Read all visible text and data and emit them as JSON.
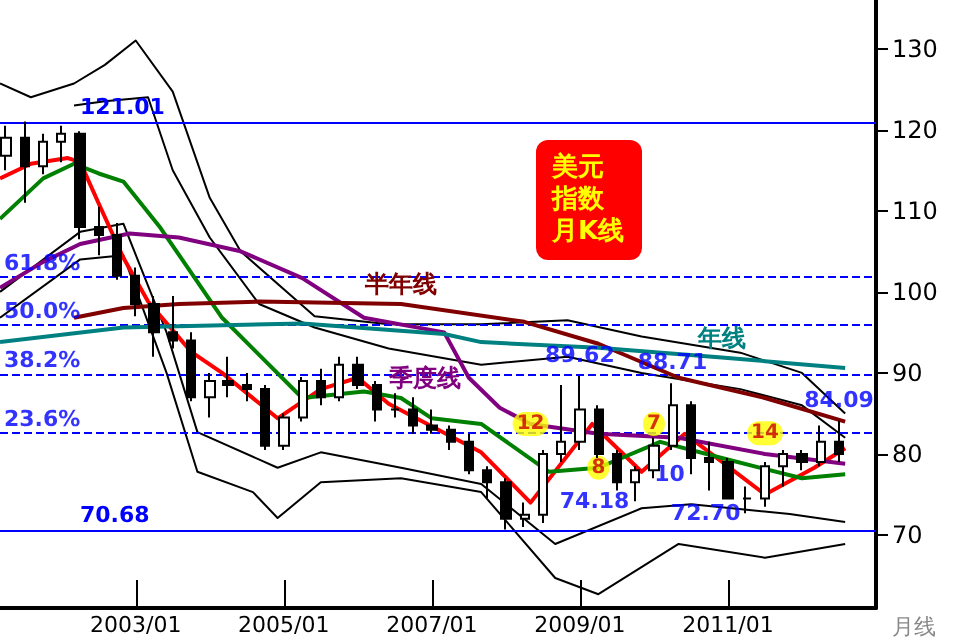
{
  "chart_data": {
    "type": "candlestick",
    "title": "美元指数月K线",
    "xlabel": "月线",
    "x": [
      "2001-04",
      "2001-07",
      "2001-10",
      "2002-01",
      "2002-04",
      "2002-07",
      "2002-10",
      "2003-01",
      "2003-04",
      "2003-07",
      "2003-10",
      "2004-01",
      "2004-04",
      "2004-07",
      "2004-10",
      "2005-01",
      "2005-04",
      "2005-07",
      "2005-10",
      "2006-01",
      "2006-04",
      "2006-07",
      "2006-10",
      "2007-01",
      "2007-04",
      "2007-07",
      "2007-10",
      "2008-01",
      "2008-04",
      "2008-07",
      "2008-10",
      "2009-01",
      "2009-04",
      "2009-07",
      "2009-10",
      "2010-01",
      "2010-04",
      "2010-07",
      "2010-10",
      "2011-01",
      "2011-04",
      "2011-07",
      "2011-10",
      "2012-01",
      "2012-04",
      "2012-07"
    ],
    "ohlc": [
      [
        116.8,
        120.5,
        115.0,
        119.0
      ],
      [
        119.0,
        121.01,
        111.0,
        115.5
      ],
      [
        115.5,
        119.5,
        114.5,
        118.5
      ],
      [
        118.5,
        120.5,
        116.0,
        119.5
      ],
      [
        119.5,
        119.8,
        106.5,
        108.0
      ],
      [
        108.0,
        110.5,
        104.5,
        107.0
      ],
      [
        107.0,
        108.5,
        101.5,
        102.0
      ],
      [
        102.0,
        103.0,
        97.0,
        98.5
      ],
      [
        98.5,
        99.5,
        92.0,
        95.0
      ],
      [
        95.0,
        99.5,
        93.0,
        94.0
      ],
      [
        94.0,
        95.0,
        86.5,
        87.0
      ],
      [
        87.0,
        90.0,
        84.5,
        89.0
      ],
      [
        89.0,
        92.0,
        87.0,
        88.5
      ],
      [
        88.5,
        90.0,
        86.5,
        88.0
      ],
      [
        88.0,
        88.5,
        80.5,
        81.0
      ],
      [
        81.0,
        85.0,
        80.5,
        84.5
      ],
      [
        84.5,
        89.5,
        84.0,
        89.0
      ],
      [
        89.0,
        90.5,
        86.0,
        87.0
      ],
      [
        87.0,
        92.0,
        86.5,
        91.0
      ],
      [
        91.0,
        92.0,
        88.0,
        88.5
      ],
      [
        88.5,
        89.0,
        84.0,
        85.5
      ],
      [
        85.5,
        87.5,
        84.5,
        85.5
      ],
      [
        85.5,
        87.0,
        82.5,
        83.5
      ],
      [
        83.5,
        85.5,
        82.5,
        83.0
      ],
      [
        83.0,
        83.5,
        80.5,
        81.5
      ],
      [
        81.5,
        82.5,
        77.5,
        78.0
      ],
      [
        78.0,
        78.5,
        74.5,
        76.5
      ],
      [
        76.5,
        77.0,
        70.68,
        72.0
      ],
      [
        72.0,
        74.0,
        71.0,
        72.5
      ],
      [
        72.5,
        80.5,
        71.5,
        80.0
      ],
      [
        80.0,
        88.5,
        79.0,
        81.5
      ],
      [
        81.5,
        89.62,
        80.5,
        85.5
      ],
      [
        85.5,
        86.0,
        79.5,
        80.0
      ],
      [
        80.0,
        80.5,
        75.5,
        76.5
      ],
      [
        76.5,
        78.5,
        74.18,
        78.0
      ],
      [
        78.0,
        82.0,
        77.0,
        81.0
      ],
      [
        81.0,
        88.71,
        80.5,
        86.0
      ],
      [
        86.0,
        86.5,
        77.5,
        79.5
      ],
      [
        79.5,
        81.5,
        75.5,
        79.0
      ],
      [
        79.0,
        79.5,
        74.5,
        74.5
      ],
      [
        74.5,
        76.0,
        72.7,
        74.5
      ],
      [
        74.5,
        79.0,
        73.5,
        78.5
      ],
      [
        78.5,
        80.5,
        76.0,
        80.0
      ],
      [
        80.0,
        80.5,
        78.0,
        79.0
      ],
      [
        79.0,
        83.5,
        78.5,
        81.5
      ],
      [
        81.5,
        84.09,
        79.0,
        80.0
      ]
    ],
    "color": "#000000",
    "series": [
      {
        "type": "line",
        "color": "#ff0000",
        "x": [
          "2001-03",
          "2001-08",
          "2002-02",
          "2002-04",
          "2002-07",
          "2002-11",
          "2003-03",
          "2003-10",
          "2004-03",
          "2004-12",
          "2005-07",
          "2006-01",
          "2006-06",
          "2007-09",
          "2008-05",
          "2009-03",
          "2009-11",
          "2010-06",
          "2011-07",
          "2012-03",
          "2012-08"
        ],
        "values": [
          114,
          115.8,
          116.5,
          116,
          110.9,
          104.2,
          98.8,
          92.6,
          90,
          84.4,
          88,
          89.4,
          86.2,
          80.2,
          74,
          83.7,
          77.8,
          82.5,
          75,
          78.3,
          80.7
        ]
      },
      {
        "type": "line",
        "color": "#008000",
        "x": [
          "2001-03",
          "2001-10",
          "2002-03",
          "2002-07",
          "2002-11",
          "2003-05",
          "2004-03",
          "2005-04",
          "2006-02",
          "2006-08",
          "2007-01",
          "2007-09",
          "2008-08",
          "2009-04",
          "2010-02",
          "2010-12",
          "2012-01",
          "2012-08"
        ],
        "values": [
          109,
          114,
          115.8,
          114.6,
          113.6,
          107.9,
          96.8,
          86.9,
          87.7,
          86.9,
          84.4,
          83.7,
          77.8,
          78.3,
          81.5,
          79.5,
          77,
          77.5
        ]
      },
      {
        "type": "line",
        "name": "季度线",
        "color": "#800080",
        "x": [
          "2001-03",
          "2001-10",
          "2002-04",
          "2002-12",
          "2003-08",
          "2004-06",
          "2005-04",
          "2006-02",
          "2007-03",
          "2007-07",
          "2007-12",
          "2008-05",
          "2009-04",
          "2010-05",
          "2011-07",
          "2012-08"
        ],
        "values": [
          100.5,
          103.7,
          105.9,
          107.2,
          106.7,
          105,
          101.7,
          96.8,
          95,
          89.4,
          85.7,
          83.7,
          82.5,
          82,
          80,
          78.8
        ]
      },
      {
        "type": "line",
        "name": "半年线",
        "color": "#800000",
        "x": [
          "2002-03",
          "2002-11",
          "2003-08",
          "2004-09",
          "2006-08",
          "2008-04",
          "2009-04",
          "2010-05",
          "2011-07",
          "2012-08"
        ],
        "values": [
          96.8,
          98,
          98.5,
          98.8,
          98.5,
          96.3,
          93.6,
          89.4,
          86.9,
          84
        ]
      },
      {
        "type": "line",
        "name": "年线",
        "color": "#008080",
        "x": [
          "2001-03",
          "2002-11",
          "2005-04",
          "2007-03",
          "2007-09",
          "2009-04",
          "2010-12",
          "2012-08"
        ],
        "values": [
          93.8,
          95.6,
          96.1,
          94.8,
          93.8,
          93.1,
          91.9,
          90.6
        ]
      },
      {
        "type": "line",
        "color": "#000000",
        "x": [
          "2001-03",
          "2001-08",
          "2002-03",
          "2002-08",
          "2003-01",
          "2003-07",
          "2004-01",
          "2004-06",
          "2005-06",
          "2006-06",
          "2007-09",
          "2008-11",
          "2009-11",
          "2011-03",
          "2012-01",
          "2012-08"
        ],
        "values": [
          125.7,
          124,
          125.7,
          128,
          131,
          124.7,
          111.6,
          105,
          97,
          96,
          96,
          96.5,
          94.5,
          92.5,
          90,
          85
        ]
      },
      {
        "type": "line",
        "color": "#000000",
        "x": [
          "2002-03",
          "2002-08",
          "2003-03",
          "2003-07",
          "2004-01",
          "2004-09",
          "2005-06",
          "2006-06",
          "2007-09",
          "2008-11",
          "2009-11",
          "2011-03",
          "2012-01",
          "2012-08"
        ],
        "values": [
          123,
          123.5,
          124,
          115,
          106.7,
          98.5,
          95.6,
          93,
          91,
          92,
          90,
          88,
          86,
          82
        ]
      },
      {
        "type": "line",
        "color": "#000000",
        "x": [
          "2001-03",
          "2002-04",
          "2002-11",
          "2003-06",
          "2003-11",
          "2004-12",
          "2005-07",
          "2006-08",
          "2007-09",
          "2008-09",
          "2009-11",
          "2010-07",
          "2011-11",
          "2012-08"
        ],
        "values": [
          100,
          107.4,
          108.4,
          95,
          82.7,
          78.3,
          80.2,
          78.3,
          76.3,
          68.9,
          73.3,
          73.8,
          72.6,
          71.6
        ]
      },
      {
        "type": "line",
        "color": "#000000",
        "x": [
          "2001-03",
          "2002-04",
          "2002-11",
          "2003-06",
          "2003-11",
          "2004-08",
          "2004-12",
          "2005-07",
          "2006-08",
          "2007-09",
          "2008-09",
          "2009-04",
          "2010-05",
          "2011-07",
          "2012-08"
        ],
        "values": [
          96.8,
          104,
          104.5,
          90,
          77.8,
          75.3,
          72.1,
          76.5,
          77,
          75.3,
          64.7,
          62.7,
          68.9,
          67.2,
          68.9
        ]
      }
    ],
    "annotations": [
      {
        "text": "89.62",
        "x": "2009-01",
        "y": 89.62
      },
      {
        "text": "88.71",
        "x": "2010-04",
        "y": 88.71
      },
      {
        "text": "84.09",
        "x": "2012-07",
        "y": 84.09
      },
      {
        "text": "74.18",
        "x": "2009-10",
        "y": 74.18
      },
      {
        "text": "72.70",
        "x": "2011-04",
        "y": 72.7
      },
      {
        "text": "12",
        "x": "2008-05",
        "y": 83.7
      },
      {
        "text": "8",
        "x": "2009-04",
        "y": 78.3
      },
      {
        "text": "7",
        "x": "2010-01",
        "y": 83.7
      },
      {
        "text": "10",
        "x": "2010-07",
        "y": 77.5
      },
      {
        "text": "14",
        "x": "2011-07",
        "y": 82.56
      },
      {
        "text": "61.8%",
        "x": "2001-03",
        "y": 101.78
      },
      {
        "text": "50.0%",
        "x": "2001-03",
        "y": 95.85
      },
      {
        "text": "38.2%",
        "x": "2001-03",
        "y": 89.91
      },
      {
        "text": "23.6%",
        "x": "2001-03",
        "y": 82.56
      }
    ],
    "ref_lines": [
      {
        "axis": "y",
        "value": 121.01,
        "label": "121.01",
        "color": "#0000ff",
        "line_style": "solid"
      },
      {
        "axis": "y",
        "value": 101.78,
        "color": "#0000ff",
        "line_style": "dashed"
      },
      {
        "axis": "y",
        "value": 95.85,
        "color": "#0000ff",
        "line_style": "dashed"
      },
      {
        "axis": "y",
        "value": 89.91,
        "color": "#0000ff",
        "line_style": "dashed"
      },
      {
        "axis": "y",
        "value": 82.56,
        "color": "#0000ff",
        "line_style": "dashed"
      },
      {
        "axis": "y",
        "value": 70.68,
        "label": "70.68",
        "color": "#0000ff",
        "line_style": "solid"
      }
    ],
    "xlim": [
      "2001-03",
      "2013-01"
    ],
    "xticks": [
      {
        "value": "2003-01",
        "label": "2003/01"
      },
      {
        "value": "2005-01",
        "label": "2005/01"
      },
      {
        "value": "2007-01",
        "label": "2007/01"
      },
      {
        "value": "2009-01",
        "label": "2009/01"
      },
      {
        "value": "2011-01",
        "label": "2011/01"
      }
    ],
    "ylim": [
      61,
      136
    ],
    "yticks": [
      70,
      80,
      90,
      100,
      110,
      120,
      130
    ]
  }
}
